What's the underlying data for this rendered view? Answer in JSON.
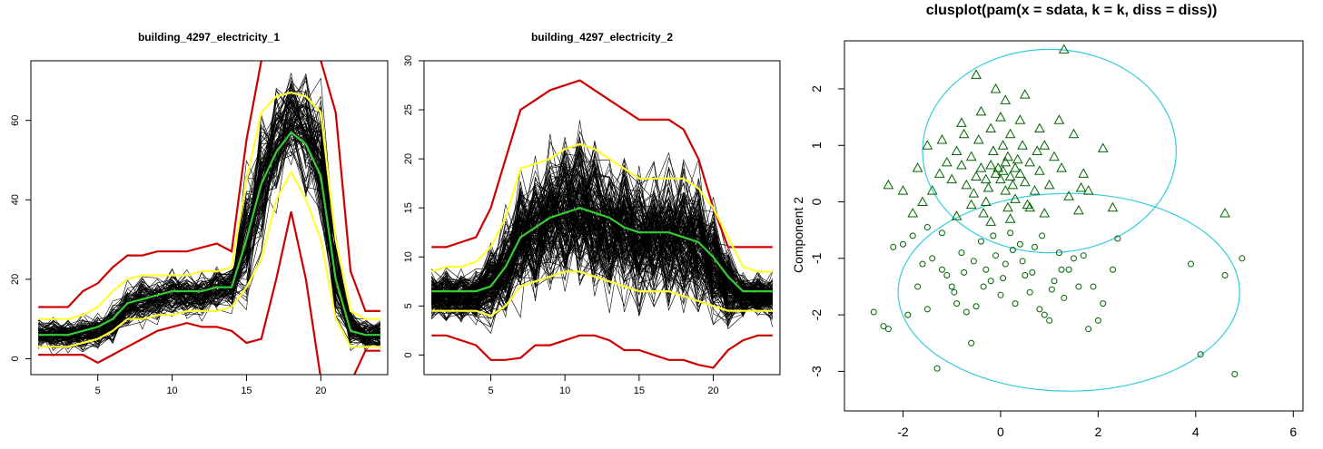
{
  "chart_data": [
    {
      "type": "line",
      "title": "building_4297_electricity_1",
      "xlabel": "",
      "ylabel": "",
      "xlim": [
        0.5,
        24.5
      ],
      "ylim": [
        -4,
        75
      ],
      "xticks": [
        5,
        10,
        15,
        20
      ],
      "yticks": [
        0,
        20,
        40,
        60
      ],
      "x": [
        1,
        2,
        3,
        4,
        5,
        6,
        7,
        8,
        9,
        10,
        11,
        12,
        13,
        14,
        15,
        16,
        17,
        18,
        19,
        20,
        21,
        22,
        23,
        24
      ],
      "series": [
        {
          "color": "#000000",
          "values": [
            6,
            6,
            6,
            6,
            7,
            9,
            13,
            15,
            15,
            16,
            16,
            16,
            17,
            18,
            30,
            45,
            55,
            62,
            58,
            50,
            20,
            8,
            6,
            6
          ]
        },
        {
          "color": "#cc0000",
          "values": [
            13,
            13,
            13,
            17,
            19,
            23,
            26,
            26,
            27,
            27,
            27,
            28,
            29,
            27,
            55,
            75,
            88,
            95,
            80,
            75,
            62,
            22,
            12,
            12
          ]
        },
        {
          "color": "#cc0000",
          "values": [
            1,
            1,
            1,
            1,
            -1,
            1,
            3,
            5,
            7,
            8,
            9,
            8,
            8,
            7,
            4,
            5,
            20,
            37,
            20,
            -5,
            -10,
            -6,
            2,
            2
          ]
        },
        {
          "color": "#ffff33",
          "values": [
            10,
            10,
            10,
            11,
            13,
            17,
            20,
            21,
            21,
            21,
            21,
            22,
            22,
            23,
            45,
            62,
            66,
            67,
            66,
            62,
            30,
            12,
            10,
            10
          ]
        },
        {
          "color": "#ffff33",
          "values": [
            3,
            3,
            3,
            4,
            5,
            7,
            10,
            10,
            11,
            11,
            12,
            12,
            12,
            13,
            18,
            25,
            40,
            47,
            40,
            30,
            10,
            3,
            3,
            3
          ]
        },
        {
          "color": "#33cc33",
          "values": [
            6,
            6,
            6,
            7,
            8,
            10,
            14,
            15,
            16,
            17,
            17,
            17,
            18,
            18,
            30,
            44,
            52,
            57,
            54,
            46,
            20,
            7,
            6,
            6
          ]
        }
      ]
    },
    {
      "type": "line",
      "title": "building_4297_electricity_2",
      "xlabel": "",
      "ylabel": "",
      "xlim": [
        0.5,
        24.5
      ],
      "ylim": [
        -2,
        30
      ],
      "xticks": [
        5,
        10,
        15,
        20
      ],
      "yticks": [
        0,
        5,
        10,
        15,
        20,
        25,
        30
      ],
      "x": [
        1,
        2,
        3,
        4,
        5,
        6,
        7,
        8,
        9,
        10,
        11,
        12,
        13,
        14,
        15,
        16,
        17,
        18,
        19,
        20,
        21,
        22,
        23,
        24
      ],
      "series": [
        {
          "color": "#000000",
          "values": [
            6,
            6,
            6,
            6,
            7,
            9,
            12,
            13,
            14,
            15,
            15,
            14,
            13,
            13,
            12,
            12,
            12,
            12,
            11,
            9,
            7,
            6,
            6,
            6
          ]
        },
        {
          "color": "#cc0000",
          "values": [
            11,
            11,
            11.5,
            12,
            15,
            20,
            25,
            26,
            27,
            27.5,
            28,
            27,
            26,
            25,
            24,
            24,
            24,
            23,
            20,
            15,
            11,
            11,
            11,
            11
          ]
        },
        {
          "color": "#cc0000",
          "values": [
            2,
            2,
            1.5,
            1,
            -0.5,
            -0.5,
            -0.3,
            1,
            1,
            1.5,
            2,
            2,
            1.5,
            0.5,
            0.5,
            0,
            -0.5,
            -0.5,
            -1,
            -1.3,
            0.5,
            1.5,
            2,
            2
          ]
        },
        {
          "color": "#ffff33",
          "values": [
            8.5,
            9,
            9,
            9.5,
            11,
            14,
            19,
            19.5,
            20,
            21,
            21.5,
            21,
            20,
            19,
            18,
            18,
            18,
            18,
            17,
            15,
            12,
            9,
            8.5,
            8.5
          ]
        },
        {
          "color": "#ffff33",
          "values": [
            4.5,
            4.5,
            4.5,
            4.5,
            4,
            5,
            7,
            7.5,
            8,
            8.5,
            8.5,
            8,
            7.5,
            7,
            6.5,
            6.5,
            6.5,
            6,
            5.5,
            5,
            4.5,
            4.5,
            4.5,
            4.5
          ]
        },
        {
          "color": "#33cc33",
          "values": [
            6.5,
            6.5,
            6.5,
            6.5,
            7,
            9,
            12,
            13,
            14,
            14.5,
            15,
            14.5,
            14,
            13,
            12.5,
            12.5,
            12.5,
            12,
            11.5,
            10,
            8,
            6.5,
            6.5,
            6.5
          ]
        }
      ]
    },
    {
      "type": "scatter",
      "title": "clusplot(pam(x = sdata, k = k, diss = diss))",
      "xlabel": "",
      "ylabel": "Component 2",
      "xlim": [
        -3.2,
        6.2
      ],
      "ylim": [
        -3.7,
        2.85
      ],
      "xticks": [
        -2,
        0,
        2,
        4,
        6
      ],
      "yticks": [
        -3,
        -2,
        -1,
        0,
        1,
        2
      ],
      "clusters": [
        {
          "marker": "triangle",
          "color": "#006400",
          "ellipse": {
            "cx": 1.0,
            "cy": 0.9,
            "rx": 2.6,
            "ry": 1.8,
            "color": "#33ccdd"
          },
          "points": [
            [
              -0.05,
              0.6
            ],
            [
              0.05,
              0.55
            ],
            [
              0.1,
              0.7
            ],
            [
              -0.1,
              0.5
            ],
            [
              0.2,
              0.45
            ],
            [
              0.0,
              0.4
            ],
            [
              -0.2,
              0.65
            ],
            [
              0.15,
              0.8
            ],
            [
              0.3,
              0.6
            ],
            [
              -0.3,
              0.4
            ],
            [
              0.25,
              0.3
            ],
            [
              -0.15,
              0.9
            ],
            [
              0.4,
              0.5
            ],
            [
              -0.4,
              0.6
            ],
            [
              0.05,
              1.0
            ],
            [
              0.35,
              0.75
            ],
            [
              -0.25,
              0.25
            ],
            [
              0.1,
              0.2
            ],
            [
              0.5,
              0.35
            ],
            [
              -0.5,
              0.45
            ],
            [
              0.6,
              0.7
            ],
            [
              -0.6,
              0.8
            ],
            [
              0.2,
              1.2
            ],
            [
              -0.2,
              1.3
            ],
            [
              0.45,
              1.0
            ],
            [
              -0.45,
              1.1
            ],
            [
              0.7,
              0.2
            ],
            [
              -0.7,
              0.3
            ],
            [
              0.8,
              0.55
            ],
            [
              -0.8,
              0.65
            ],
            [
              0.9,
              1.0
            ],
            [
              -0.9,
              0.9
            ],
            [
              0.3,
              0.05
            ],
            [
              -0.3,
              0.0
            ],
            [
              0.6,
              -0.1
            ],
            [
              -0.6,
              -0.05
            ],
            [
              1.0,
              0.3
            ],
            [
              -1.0,
              0.4
            ],
            [
              1.1,
              0.8
            ],
            [
              -1.1,
              0.7
            ],
            [
              0.0,
              1.5
            ],
            [
              0.4,
              1.45
            ],
            [
              -0.4,
              1.6
            ],
            [
              0.8,
              1.3
            ],
            [
              -0.8,
              1.4
            ],
            [
              1.2,
              1.45
            ],
            [
              -1.2,
              1.1
            ],
            [
              0.1,
              1.8
            ],
            [
              -0.1,
              2.0
            ],
            [
              0.5,
              1.9
            ],
            [
              -0.5,
              2.25
            ],
            [
              1.3,
              2.7
            ],
            [
              0.9,
              -0.2
            ],
            [
              -0.9,
              -0.25
            ],
            [
              0.2,
              -0.3
            ],
            [
              -0.2,
              -0.35
            ],
            [
              1.4,
              0.1
            ],
            [
              -1.4,
              0.2
            ],
            [
              1.6,
              -0.15
            ],
            [
              -1.6,
              0.0
            ],
            [
              1.5,
              1.2
            ],
            [
              -1.5,
              1.0
            ],
            [
              1.7,
              0.5
            ],
            [
              -1.7,
              0.6
            ],
            [
              1.8,
              0.2
            ],
            [
              -1.8,
              -0.2
            ],
            [
              -2.0,
              0.2
            ],
            [
              -2.3,
              0.3
            ],
            [
              2.1,
              0.95
            ],
            [
              2.3,
              -0.1
            ],
            [
              1.65,
              0.25
            ],
            [
              4.6,
              -0.2
            ],
            [
              0.55,
              -0.05
            ],
            [
              -0.55,
              0.15
            ],
            [
              0.75,
              0.9
            ],
            [
              -0.75,
              1.2
            ],
            [
              0.15,
              -0.1
            ],
            [
              -0.35,
              -0.2
            ],
            [
              1.25,
              0.6
            ],
            [
              -1.25,
              0.5
            ]
          ]
        },
        {
          "marker": "circle",
          "color": "#006400",
          "ellipse": {
            "cx": 1.4,
            "cy": -1.6,
            "rx": 3.5,
            "ry": 1.75,
            "color": "#33ccdd"
          },
          "points": [
            [
              -2.6,
              -1.95
            ],
            [
              -2.4,
              -2.2
            ],
            [
              -2.3,
              -2.25
            ],
            [
              -2.2,
              -0.8
            ],
            [
              -2.0,
              -0.75
            ],
            [
              -1.8,
              -0.6
            ],
            [
              -1.7,
              -1.5
            ],
            [
              -1.6,
              -1.1
            ],
            [
              -1.5,
              -0.45
            ],
            [
              -1.4,
              -1.0
            ],
            [
              -1.3,
              -2.95
            ],
            [
              -1.2,
              -1.2
            ],
            [
              -1.1,
              -1.3
            ],
            [
              -1.0,
              -1.5
            ],
            [
              -0.9,
              -1.8
            ],
            [
              -0.8,
              -0.9
            ],
            [
              -0.7,
              -1.95
            ],
            [
              -0.6,
              -2.5
            ],
            [
              -0.5,
              -1.85
            ],
            [
              -0.4,
              -0.7
            ],
            [
              -0.3,
              -1.2
            ],
            [
              -0.2,
              -1.4
            ],
            [
              -0.1,
              -0.95
            ],
            [
              0.0,
              -1.65
            ],
            [
              0.1,
              -1.1
            ],
            [
              0.2,
              -0.55
            ],
            [
              0.3,
              -1.8
            ],
            [
              0.4,
              -0.75
            ],
            [
              0.5,
              -1.3
            ],
            [
              0.6,
              -1.6
            ],
            [
              0.7,
              -0.8
            ],
            [
              0.8,
              -1.9
            ],
            [
              0.9,
              -2.0
            ],
            [
              1.0,
              -2.1
            ],
            [
              1.1,
              -1.4
            ],
            [
              1.2,
              -0.9
            ],
            [
              1.3,
              -1.7
            ],
            [
              1.4,
              -1.2
            ],
            [
              1.5,
              -1.0
            ],
            [
              1.6,
              -1.5
            ],
            [
              1.7,
              -0.95
            ],
            [
              1.8,
              -2.25
            ],
            [
              1.9,
              -1.5
            ],
            [
              2.0,
              -2.1
            ],
            [
              2.1,
              -1.8
            ],
            [
              2.3,
              -1.2
            ],
            [
              2.4,
              -0.65
            ],
            [
              -1.9,
              -2.0
            ],
            [
              -1.5,
              -1.9
            ],
            [
              -1.2,
              -0.55
            ],
            [
              -0.95,
              -1.6
            ],
            [
              -0.75,
              -1.25
            ],
            [
              -0.55,
              -1.05
            ],
            [
              -0.35,
              -1.5
            ],
            [
              -0.15,
              -0.6
            ],
            [
              0.05,
              -1.35
            ],
            [
              0.25,
              -0.85
            ],
            [
              0.45,
              -1.05
            ],
            [
              0.65,
              -1.25
            ],
            [
              0.85,
              -0.6
            ],
            [
              1.05,
              -1.55
            ],
            [
              1.25,
              -1.2
            ],
            [
              3.9,
              -1.1
            ],
            [
              4.1,
              -2.7
            ],
            [
              4.6,
              -1.3
            ],
            [
              4.8,
              -3.05
            ],
            [
              4.95,
              -1.0
            ]
          ]
        }
      ]
    }
  ]
}
